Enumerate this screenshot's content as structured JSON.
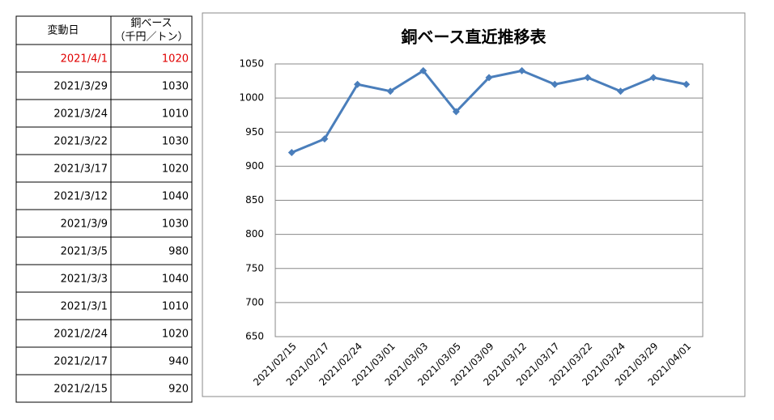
{
  "table": {
    "headers": {
      "date": "変動日",
      "price": [
        "銅ベース",
        "（千円／トン）"
      ]
    },
    "rows": [
      [
        "2021/4/1",
        "1020"
      ],
      [
        "2021/3/29",
        "1030"
      ],
      [
        "2021/3/24",
        "1010"
      ],
      [
        "2021/3/22",
        "1030"
      ],
      [
        "2021/3/17",
        "1020"
      ],
      [
        "2021/3/12",
        "1040"
      ],
      [
        "2021/3/9",
        "1030"
      ],
      [
        "2021/3/5",
        "980"
      ],
      [
        "2021/3/3",
        "1040"
      ],
      [
        "2021/3/1",
        "1010"
      ],
      [
        "2021/2/24",
        "1020"
      ],
      [
        "2021/2/17",
        "940"
      ],
      [
        "2021/2/15",
        "920"
      ]
    ]
  },
  "chart_data": {
    "type": "line",
    "title": "銅ベース直近推移表",
    "categories": [
      "2021/02/15",
      "2021/02/17",
      "2021/02/24",
      "2021/03/01",
      "2021/03/03",
      "2021/03/05",
      "2021/03/09",
      "2021/03/12",
      "2021/03/17",
      "2021/03/22",
      "2021/03/24",
      "2021/03/29",
      "2021/04/01"
    ],
    "values": [
      920,
      940,
      1020,
      1010,
      1040,
      980,
      1030,
      1040,
      1020,
      1030,
      1010,
      1030,
      1020
    ],
    "color": "#4a7ebb",
    "ylim": [
      650,
      1050
    ],
    "yticks": [
      650,
      700,
      750,
      800,
      850,
      900,
      950,
      1000,
      1050
    ],
    "grid": true
  }
}
